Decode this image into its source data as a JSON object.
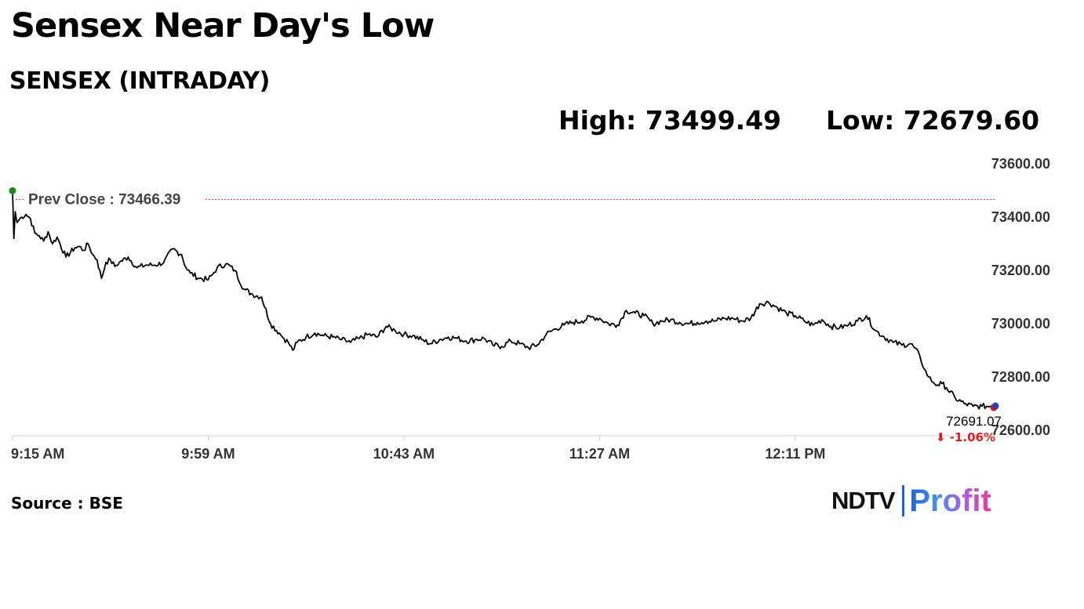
{
  "header": {
    "headline": "Sensex Near Day's Low",
    "subtitle": "SENSEX (INTRADAY)",
    "high_text": "High: 73499.49",
    "low_text": "Low: 72679.60"
  },
  "footer": {
    "source": "Source : BSE",
    "logo_ndtv": "NDTV",
    "logo_profit": "Profit"
  },
  "colors": {
    "line": "#000000",
    "prev_close_line": "#e03030",
    "start_marker": "#1a8a1a",
    "end_marker_red": "#e02020",
    "end_marker_blue": "#3a3aa8",
    "change_negative": "#e02020",
    "axis": "#d0d0d0",
    "text": "#000000",
    "axis_text": "#333333"
  },
  "chart_data": {
    "type": "line",
    "title": "SENSEX (INTRADAY)",
    "xlabel": "",
    "ylabel": "",
    "x_ticks": [
      "9:15 AM",
      "9:59 AM",
      "10:43 AM",
      "11:27 AM",
      "12:11 PM"
    ],
    "x_tick_minutes": [
      0,
      44,
      88,
      132,
      176
    ],
    "x_range_minutes": [
      0,
      221
    ],
    "y_ticks": [
      "73600.00",
      "73400.00",
      "73200.00",
      "73000.00",
      "72800.00",
      "72600.00"
    ],
    "y_tick_values": [
      73600,
      73400,
      73200,
      73000,
      72800,
      72600
    ],
    "ylim": [
      72600,
      73600
    ],
    "prev_close_label": "Prev Close : 73466.39",
    "prev_close": 73466.39,
    "last_value_label": "72691.07",
    "change_label": "⬇ -1.06%",
    "last_value": 72691.07,
    "grid": false,
    "series": [
      {
        "x": [
          0,
          0.3,
          0.6,
          1,
          2,
          3,
          4,
          5,
          6,
          7,
          8,
          9,
          10,
          12,
          14,
          15,
          16,
          17,
          18,
          19,
          20,
          21,
          22,
          23,
          24,
          26,
          28,
          30,
          32,
          34,
          36,
          38,
          39,
          40,
          42,
          44,
          45,
          46,
          48,
          50,
          52,
          54,
          56,
          58,
          60,
          61,
          62,
          63,
          64,
          66,
          68,
          70,
          72,
          74,
          76,
          78,
          80,
          82,
          84,
          86,
          88,
          90,
          92,
          94,
          96,
          98,
          100,
          102,
          104,
          106,
          108,
          110,
          112,
          114,
          116,
          118,
          120,
          122,
          124,
          126,
          128,
          130,
          132,
          134,
          136,
          138,
          140,
          142,
          144,
          146,
          148,
          150,
          152,
          154,
          156,
          158,
          160,
          162,
          164,
          166,
          168,
          170,
          172,
          174,
          176,
          178,
          180,
          182,
          184,
          186,
          188,
          190,
          192,
          194,
          196,
          198,
          200,
          202,
          204,
          205,
          206,
          207,
          208,
          209,
          210,
          212,
          214,
          216,
          218,
          220,
          221
        ],
        "values": [
          73499,
          73320,
          73420,
          73380,
          73400,
          73410,
          73395,
          73340,
          73330,
          73310,
          73345,
          73300,
          73325,
          73250,
          73285,
          73290,
          73275,
          73300,
          73260,
          73240,
          73170,
          73230,
          73240,
          73215,
          73230,
          73250,
          73210,
          73220,
          73220,
          73230,
          73280,
          73260,
          73210,
          73190,
          73170,
          73165,
          73185,
          73210,
          73225,
          73200,
          73130,
          73110,
          73100,
          73000,
          72965,
          72945,
          72930,
          72900,
          72930,
          72950,
          72965,
          72955,
          72950,
          72940,
          72930,
          72945,
          72960,
          72950,
          72990,
          72975,
          72960,
          72955,
          72940,
          72925,
          72940,
          72950,
          72945,
          72935,
          72940,
          72945,
          72920,
          72915,
          72935,
          72925,
          72910,
          72920,
          72960,
          72980,
          72995,
          73005,
          73010,
          73025,
          73020,
          73000,
          72995,
          73050,
          73040,
          73030,
          73000,
          73010,
          73015,
          73005,
          73000,
          73005,
          73010,
          73010,
          73020,
          73020,
          73010,
          73020,
          73075,
          73080,
          73060,
          73040,
          73030,
          73010,
          72995,
          73015,
          72990,
          72985,
          72995,
          73010,
          73030,
          72975,
          72950,
          72930,
          72920,
          72925,
          72880,
          72830,
          72800,
          72780,
          72770,
          72775,
          72760,
          72720,
          72700,
          72690,
          72690,
          72691,
          72691
        ]
      }
    ]
  }
}
